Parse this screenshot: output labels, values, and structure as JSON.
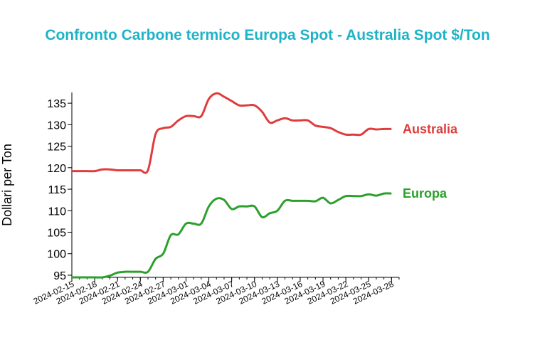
{
  "chart_data": {
    "type": "line",
    "title": "Confronto Carbone termico Europa Spot - Australia Spot $/Ton",
    "xlabel": "",
    "ylabel": "Dollari per Ton",
    "ylim": [
      94.5,
      137.5
    ],
    "xlim": [
      "2024-02-15",
      "2024-03-29"
    ],
    "x_ticks": [
      "2024-02-15",
      "2024-02-18",
      "2024-02-21",
      "2024-02-24",
      "2024-02-27",
      "2024-03-01",
      "2024-03-04",
      "2024-03-07",
      "2024-03-10",
      "2024-03-13",
      "2024-03-16",
      "2024-03-19",
      "2024-03-22",
      "2024-03-25",
      "2024-03-28"
    ],
    "y_ticks": [
      95,
      100,
      105,
      110,
      115,
      120,
      125,
      130,
      135
    ],
    "grid": false,
    "legend": "inline labels at line ends",
    "colors": {
      "Australia": "#e03c3c",
      "Europa": "#2ca02c",
      "title": "#1fb3c8"
    },
    "x": [
      "2024-02-15",
      "2024-02-16",
      "2024-02-17",
      "2024-02-18",
      "2024-02-19",
      "2024-02-20",
      "2024-02-21",
      "2024-02-22",
      "2024-02-23",
      "2024-02-24",
      "2024-02-25",
      "2024-02-26",
      "2024-02-27",
      "2024-02-28",
      "2024-02-29",
      "2024-03-01",
      "2024-03-02",
      "2024-03-03",
      "2024-03-04",
      "2024-03-05",
      "2024-03-06",
      "2024-03-07",
      "2024-03-08",
      "2024-03-09",
      "2024-03-10",
      "2024-03-11",
      "2024-03-12",
      "2024-03-13",
      "2024-03-14",
      "2024-03-15",
      "2024-03-16",
      "2024-03-17",
      "2024-03-18",
      "2024-03-19",
      "2024-03-20",
      "2024-03-21",
      "2024-03-22",
      "2024-03-23",
      "2024-03-24",
      "2024-03-25",
      "2024-03-26",
      "2024-03-27",
      "2024-03-28"
    ],
    "series": [
      {
        "name": "Australia",
        "values": [
          119.2,
          119.2,
          119.2,
          119.2,
          119.6,
          119.6,
          119.4,
          119.4,
          119.4,
          119.4,
          119.4,
          127.8,
          129.2,
          129.5,
          131.0,
          132.0,
          132.0,
          132.0,
          136.0,
          137.3,
          136.5,
          135.5,
          134.5,
          134.5,
          134.5,
          133.0,
          130.5,
          131.0,
          131.5,
          131.0,
          131.0,
          131.0,
          129.8,
          129.5,
          129.2,
          128.3,
          127.7,
          127.7,
          127.7,
          129.0,
          128.9,
          129.0,
          129.0
        ]
      },
      {
        "name": "Europa",
        "values": [
          94.5,
          94.5,
          94.5,
          94.5,
          94.5,
          94.9,
          95.6,
          95.8,
          95.8,
          95.8,
          95.8,
          98.8,
          100.0,
          104.3,
          104.5,
          107.0,
          107.0,
          107.0,
          111.0,
          112.8,
          112.5,
          110.4,
          111.0,
          111.0,
          111.0,
          108.5,
          109.4,
          110.0,
          112.3,
          112.3,
          112.3,
          112.3,
          112.2,
          113.0,
          111.7,
          112.5,
          113.4,
          113.4,
          113.4,
          113.8,
          113.5,
          114.0,
          114.0
        ]
      }
    ]
  }
}
